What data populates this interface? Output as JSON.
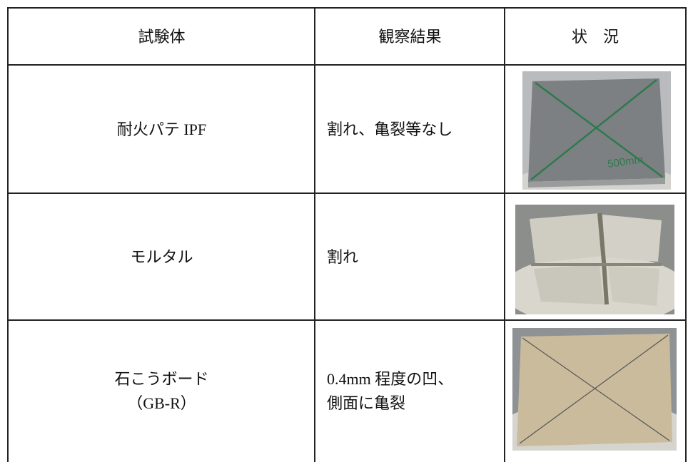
{
  "table": {
    "header": [
      "試験体",
      "観察結果",
      "状　況"
    ],
    "rows": [
      {
        "specimen": [
          "耐火パテ IPF"
        ],
        "result": [
          "割れ、亀裂等なし"
        ],
        "photo_text": "500mm"
      },
      {
        "specimen": [
          "モルタル"
        ],
        "result": [
          "割れ"
        ]
      },
      {
        "specimen": [
          "石こうボード",
          "（GB-R）"
        ],
        "result": [
          "0.4mm 程度の凹、",
          "側面に亀裂"
        ]
      }
    ]
  }
}
